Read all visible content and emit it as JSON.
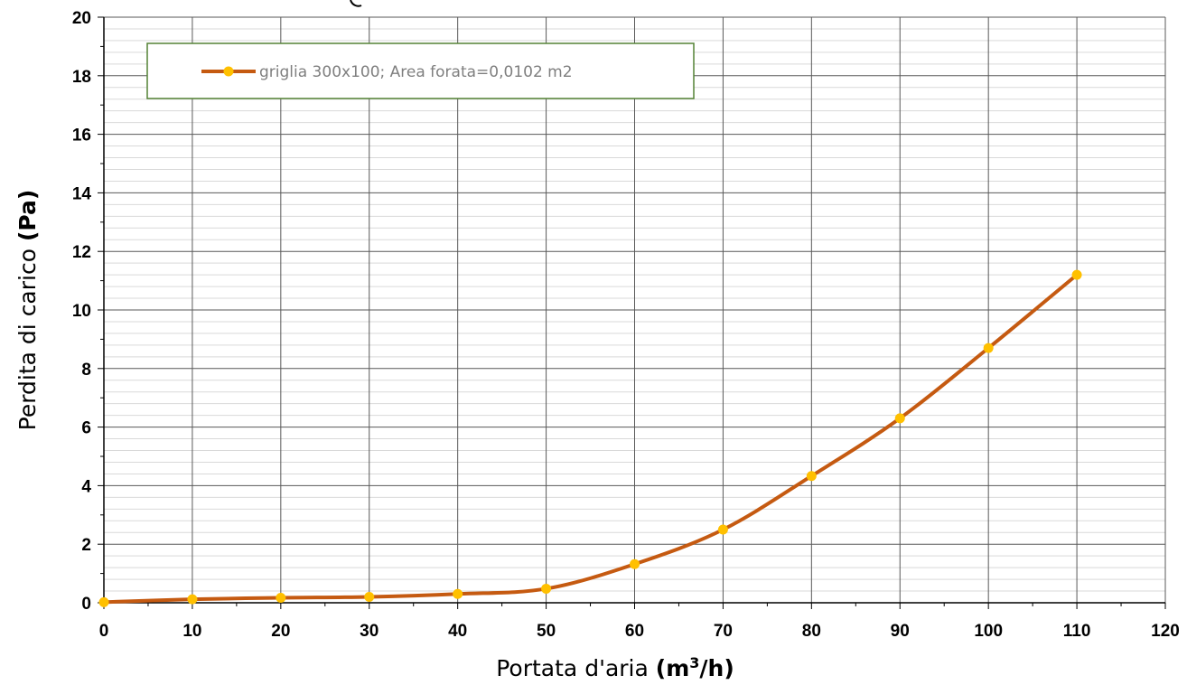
{
  "chart_data": {
    "type": "line",
    "title": "",
    "xlabel": "Portata d'aria",
    "xlabel_unit_parts": [
      "(m",
      "3",
      "/h)"
    ],
    "ylabel": "Perdita di carico",
    "ylabel_unit": "(Pa)",
    "xlim": [
      0,
      120
    ],
    "ylim": [
      0,
      20
    ],
    "x_ticks": [
      "0",
      "10",
      "20",
      "30",
      "40",
      "50",
      "60",
      "70",
      "80",
      "90",
      "100",
      "110",
      "120"
    ],
    "y_ticks": [
      "0",
      "2",
      "4",
      "6",
      "8",
      "10",
      "12",
      "14",
      "16",
      "18",
      "20"
    ],
    "grid": "major and minor",
    "legend_position": "top-left",
    "series": [
      {
        "name": "griglia 300x100;  Area forata=0,0102 m2",
        "line_color": "#c55a11",
        "marker_color": "#ffc000",
        "x": [
          0,
          10,
          20,
          30,
          40,
          50,
          60,
          70,
          80,
          90,
          100,
          110
        ],
        "y": [
          0.02,
          0.12,
          0.17,
          0.2,
          0.3,
          0.48,
          1.32,
          2.5,
          4.33,
          6.3,
          8.7,
          11.2
        ]
      }
    ]
  }
}
